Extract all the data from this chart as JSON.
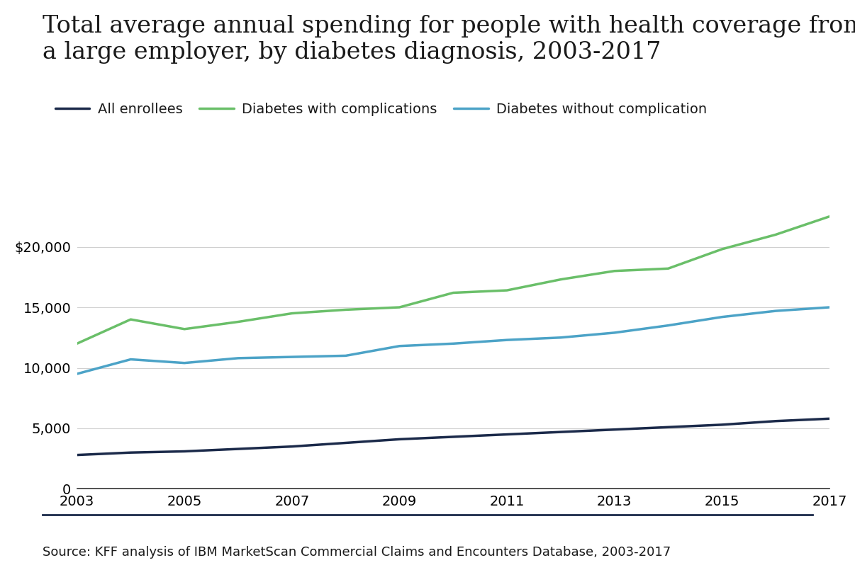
{
  "title_line1": "Total average annual spending for people with health coverage from",
  "title_line2": "a large employer, by diabetes diagnosis, 2003-2017",
  "source": "Source: KFF analysis of IBM MarketScan Commercial Claims and Encounters Database, 2003-2017",
  "years": [
    2003,
    2004,
    2005,
    2006,
    2007,
    2008,
    2009,
    2010,
    2011,
    2012,
    2013,
    2014,
    2015,
    2016,
    2017
  ],
  "all_enrollees": [
    2800,
    3000,
    3100,
    3300,
    3500,
    3800,
    4100,
    4300,
    4500,
    4700,
    4900,
    5100,
    5300,
    5600,
    5800
  ],
  "diabetes_with": [
    12000,
    14000,
    13200,
    13800,
    14500,
    14800,
    15000,
    16200,
    16400,
    17300,
    18000,
    18200,
    19800,
    21000,
    22500
  ],
  "diabetes_without": [
    9500,
    10700,
    10400,
    10800,
    10900,
    11000,
    11800,
    12000,
    12300,
    12500,
    12900,
    13500,
    14200,
    14700,
    15000
  ],
  "legend_labels": [
    "All enrollees",
    "Diabetes with complications",
    "Diabetes without complication"
  ],
  "colors": {
    "all_enrollees": "#1b2a4a",
    "diabetes_with": "#6abf69",
    "diabetes_without": "#4ca3c7"
  },
  "ylim": [
    0,
    25000
  ],
  "yticks": [
    0,
    5000,
    10000,
    15000,
    20000
  ],
  "xticks": [
    2003,
    2005,
    2007,
    2009,
    2011,
    2013,
    2015,
    2017
  ],
  "line_width": 2.5,
  "background_color": "#ffffff",
  "title_fontsize": 24,
  "legend_fontsize": 14,
  "tick_fontsize": 14,
  "source_fontsize": 13,
  "separator_color": "#1b2a4a"
}
